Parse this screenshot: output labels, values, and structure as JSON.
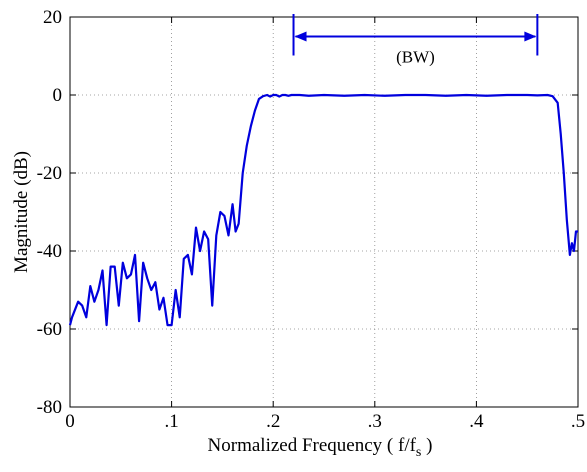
{
  "chart_data": {
    "type": "line",
    "xlabel": "Normalized Frequency  ( f/f",
    "xlabel_sub": "s",
    "xlabel_close": " )",
    "ylabel": "Magnitude (dB)",
    "xlim": [
      0,
      0.5
    ],
    "ylim": [
      -80,
      20
    ],
    "grid": true,
    "x_ticks": [
      0,
      0.1,
      0.2,
      0.3,
      0.4,
      0.5
    ],
    "x_tick_labels": [
      "0",
      ".1",
      ".2",
      ".3",
      ".4",
      ".5"
    ],
    "y_ticks": [
      -80,
      -60,
      -40,
      -20,
      0,
      20
    ],
    "y_tick_labels": [
      "-80",
      "-60",
      "-40",
      "-20",
      "0",
      "20"
    ],
    "series_color": "#0000dd",
    "series": [
      {
        "x": [
          0,
          0.002,
          0.008,
          0.012,
          0.016,
          0.02,
          0.024,
          0.028,
          0.032,
          0.036,
          0.04,
          0.044,
          0.048,
          0.052,
          0.056,
          0.06,
          0.064,
          0.068,
          0.072,
          0.076,
          0.08,
          0.084,
          0.088,
          0.092,
          0.096,
          0.1,
          0.104,
          0.108,
          0.112,
          0.116,
          0.12,
          0.124,
          0.128,
          0.132,
          0.136,
          0.14,
          0.144,
          0.148,
          0.152,
          0.156,
          0.16,
          0.163,
          0.166,
          0.17,
          0.174,
          0.178,
          0.182,
          0.186,
          0.19,
          0.194,
          0.197,
          0.2,
          0.203,
          0.206,
          0.209,
          0.212,
          0.215,
          0.218,
          0.221,
          0.226,
          0.235,
          0.25,
          0.27,
          0.29,
          0.31,
          0.33,
          0.35,
          0.37,
          0.39,
          0.41,
          0.43,
          0.45,
          0.46,
          0.47,
          0.475,
          0.48,
          0.483,
          0.486,
          0.489,
          0.492,
          0.494,
          0.496,
          0.498,
          0.5
        ],
        "values": [
          -59,
          -57,
          -53,
          -54,
          -57,
          -49,
          -53,
          -50,
          -45,
          -59,
          -44,
          -44,
          -54,
          -43,
          -47,
          -46,
          -41,
          -58,
          -43,
          -47,
          -50,
          -48,
          -55,
          -52,
          -59,
          -59,
          -50,
          -57,
          -42,
          -41,
          -46,
          -34,
          -40,
          -35,
          -37,
          -54,
          -36,
          -30,
          -31,
          -36,
          -28,
          -35,
          -33,
          -20,
          -13,
          -8,
          -4,
          -1,
          -0.3,
          0,
          -0.4,
          0,
          0,
          -0.4,
          0,
          0,
          -0.2,
          0,
          0,
          0,
          -0.2,
          0,
          -0.2,
          0,
          -0.2,
          0,
          0,
          -0.2,
          0,
          -0.2,
          0,
          0,
          -0.1,
          0,
          -0.3,
          -2,
          -10,
          -20,
          -32,
          -41,
          -38,
          -40,
          -35,
          -35
        ]
      }
    ],
    "annotations": [
      {
        "text": "(BW)",
        "x_start": 0.22,
        "x_end": 0.46,
        "y": 15
      }
    ]
  }
}
